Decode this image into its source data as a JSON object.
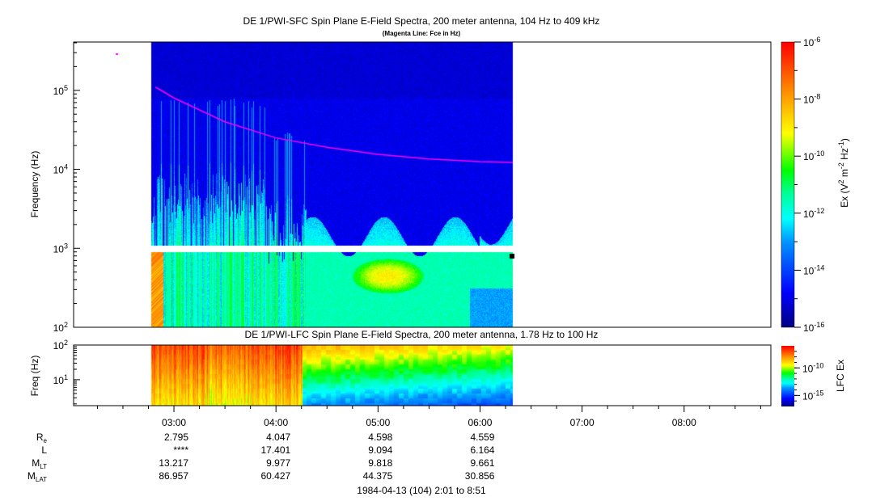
{
  "chart_data": [
    {
      "type": "heatmap",
      "title": "DE 1/PWI-SFC  Spin Plane E-Field Spectra, 200 meter antenna, 104 Hz to 409 kHz",
      "subtitle": "(Magenta Line: Fce in Hz)",
      "ylabel": "Frequency (Hz)",
      "yscale": "log",
      "ylim": [
        100,
        409000
      ],
      "ytick_values": [
        100,
        1000,
        10000,
        100000
      ],
      "ytick_labels": [
        [
          "10",
          "2"
        ],
        [
          "10",
          "3"
        ],
        [
          "10",
          "4"
        ],
        [
          "10",
          "5"
        ]
      ],
      "data_time_range": [
        "02:47",
        "06:20"
      ],
      "colorbar": {
        "label": "Ex (V",
        "label_full": "Ex (V^2 m^-2 Hz^-1)",
        "range_log10": [
          -16,
          -6
        ],
        "tick_exponents": [
          "-6",
          "-8",
          "-10",
          "-12",
          "-14",
          "-16"
        ],
        "tick_base": "10"
      },
      "fce_line": {
        "color": "#ff00ff",
        "time_hours": [
          2.82,
          3.0,
          3.5,
          4.0,
          4.5,
          5.0,
          5.5,
          6.0,
          6.32
        ],
        "freq_hz": [
          110000,
          80000,
          40000,
          25000,
          19000,
          15500,
          13500,
          12500,
          12200
        ]
      }
    },
    {
      "type": "heatmap",
      "title": "DE 1/PWI-LFC  Spin Plane E-Field Spectra, 200 meter antenna, 1.78 Hz to 100 Hz",
      "ylabel": "Freq (Hz)",
      "yscale": "log",
      "ylim": [
        1.78,
        100
      ],
      "ytick_labels": [
        [
          "10",
          "2"
        ],
        [
          "10",
          "1"
        ]
      ],
      "data_time_range": [
        "02:47",
        "06:20"
      ],
      "colorbar": {
        "label": "LFC Ex",
        "range_log10": [
          -17,
          -6
        ],
        "tick_exponents": [
          "-10",
          "-15"
        ],
        "tick_base": "10"
      }
    }
  ],
  "x_axis": {
    "range_hours": [
      2.0167,
      8.85
    ],
    "tick_labels": [
      "03:00",
      "04:00",
      "05:00",
      "06:00",
      "07:00",
      "08:00"
    ],
    "tick_hours": [
      3,
      4,
      5,
      6,
      7,
      8
    ]
  },
  "ephemeris": {
    "rows": [
      {
        "label": "R",
        "sub": "e",
        "values": [
          "2.795",
          "4.047",
          "4.598",
          "4.559"
        ]
      },
      {
        "label": "L",
        "sub": "",
        "values": [
          "****",
          "17.401",
          "9.094",
          "6.164"
        ]
      },
      {
        "label": "M",
        "sub": "LT",
        "values": [
          "13.217",
          "9.977",
          "9.818",
          "9.661"
        ]
      },
      {
        "label": "M",
        "sub": "LAT",
        "values": [
          "86.957",
          "60.427",
          "44.375",
          "30.856"
        ]
      }
    ],
    "date_range": "1984-04-13 (104) 2:01 to 8:51"
  }
}
